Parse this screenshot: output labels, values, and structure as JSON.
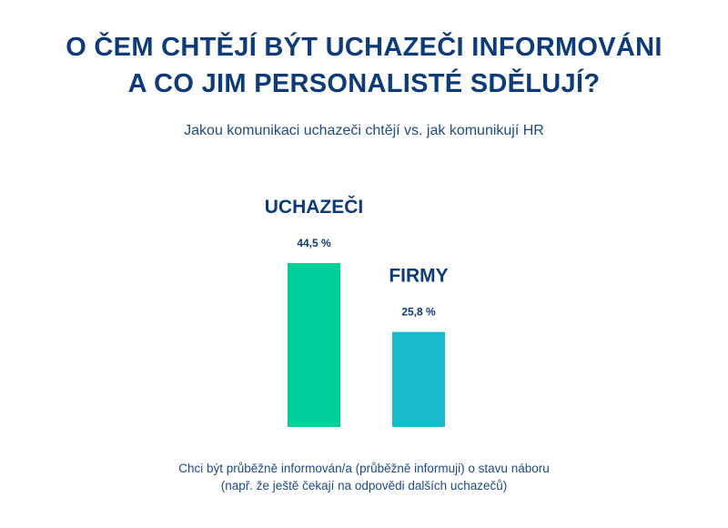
{
  "title_line1": "O ČEM CHTĚJÍ BÝT UCHAZEČI INFORMOVÁNI",
  "title_line2": "A CO JIM PERSONALISTÉ SDĚLUJÍ?",
  "subtitle": "Jakou komunikaci uchazeči chtějí vs. jak komunikují HR",
  "caption_line1": "Chci být průběžně informován/a (průběžně informuji) o stavu náboru",
  "caption_line2": "(např. že ještě čekají na odpovědi dalších uchazečů)",
  "colors": {
    "title": "#0d3a78",
    "text": "#1f4a86",
    "uchazeci": "#00cf9a",
    "firmy": "#16bccb"
  },
  "chart_data": {
    "type": "bar",
    "categories": [
      "UCHAZEČI",
      "FIRMY"
    ],
    "values": [
      44.5,
      25.8
    ],
    "value_labels": [
      "44,5 %",
      "25,8 %"
    ],
    "unit": "%"
  }
}
